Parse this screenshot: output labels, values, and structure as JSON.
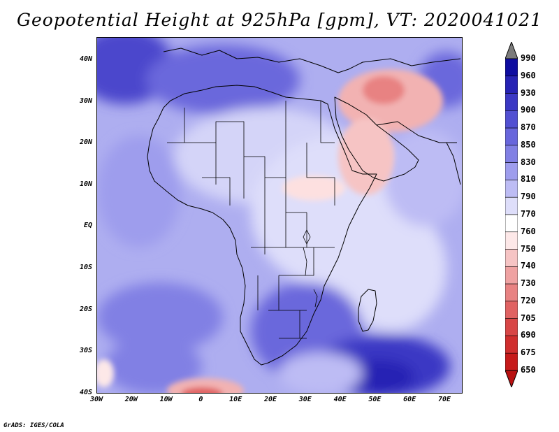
{
  "title": "Geopotential Height at 925hPa [gpm], VT: 2020041021",
  "credit": "GrADS: IGES/COLA",
  "map": {
    "lat_labels": [
      "40N",
      "30N",
      "20N",
      "10N",
      "EQ",
      "10S",
      "20S",
      "30S",
      "40S"
    ],
    "lon_labels": [
      "30W",
      "20W",
      "10W",
      "0",
      "10E",
      "20E",
      "30E",
      "40E",
      "50E",
      "60E",
      "70E"
    ],
    "base_color": "#aeaef0"
  },
  "colorbar": {
    "levels": [
      "990",
      "960",
      "930",
      "900",
      "870",
      "850",
      "830",
      "810",
      "790",
      "770",
      "760",
      "750",
      "740",
      "730",
      "720",
      "705",
      "690",
      "675",
      "650"
    ],
    "colors": [
      "#7b7b7b",
      "#0e0ca0",
      "#2622b4",
      "#3b38c4",
      "#5250d2",
      "#6866dc",
      "#8180e4",
      "#9e9ded",
      "#bdbcf4",
      "#dedefa",
      "#ffffff",
      "#fde8e8",
      "#f6c4c4",
      "#efa2a2",
      "#e88282",
      "#e06262",
      "#d84646",
      "#d02e2e",
      "#c61a1a",
      "#b81010"
    ]
  }
}
